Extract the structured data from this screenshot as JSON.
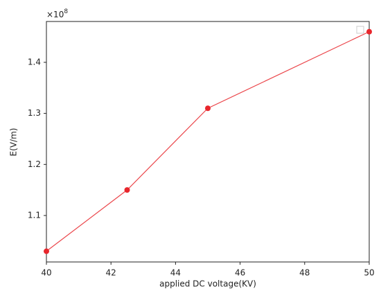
{
  "chart_data": {
    "type": "line",
    "x": [
      40,
      42.5,
      45,
      50
    ],
    "series": [
      {
        "color": "#e8262c",
        "values": [
          1.03,
          1.15,
          1.31,
          1.46
        ]
      }
    ],
    "xlabel": "applied DC voltage(KV)",
    "ylabel": "E(V/m)",
    "yoffset": "×10",
    "yoffset_exponent": "8",
    "xlim": [
      40,
      50
    ],
    "xticks": [
      40,
      42,
      44,
      46,
      48,
      50
    ],
    "ylim": [
      1.009,
      1.48
    ],
    "yticks": [
      1.1,
      1.2,
      1.3,
      1.4
    ]
  }
}
